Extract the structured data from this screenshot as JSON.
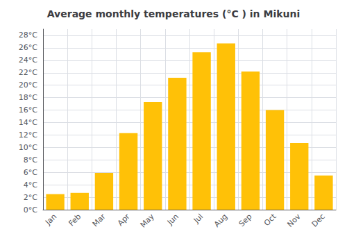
{
  "chart_data": {
    "type": "bar",
    "title": "Average monthly temperatures (°C ) in Mikuni",
    "categories": [
      "Jan",
      "Feb",
      "Mar",
      "Apr",
      "May",
      "Jun",
      "Jul",
      "Aug",
      "Sep",
      "Oct",
      "Nov",
      "Dec"
    ],
    "values": [
      2.5,
      2.7,
      5.9,
      12.3,
      17.3,
      21.2,
      25.3,
      26.7,
      22.2,
      16.0,
      10.7,
      5.5
    ],
    "color": "#FFC107",
    "ylim": [
      0,
      29
    ],
    "yticks": [
      {
        "value": 0,
        "label": "0°C"
      },
      {
        "value": 2,
        "label": "2°C"
      },
      {
        "value": 4,
        "label": "4°C"
      },
      {
        "value": 6,
        "label": "6°C"
      },
      {
        "value": 8,
        "label": "8°C"
      },
      {
        "value": 10,
        "label": "10°C"
      },
      {
        "value": 12,
        "label": "12°C"
      },
      {
        "value": 14,
        "label": "14°C"
      },
      {
        "value": 16,
        "label": "16°C"
      },
      {
        "value": 18,
        "label": "18°C"
      },
      {
        "value": 20,
        "label": "20°C"
      },
      {
        "value": 22,
        "label": "22°C"
      },
      {
        "value": 24,
        "label": "24°C"
      },
      {
        "value": 26,
        "label": "26°C"
      },
      {
        "value": 28,
        "label": "28°C"
      }
    ],
    "grid": true
  }
}
